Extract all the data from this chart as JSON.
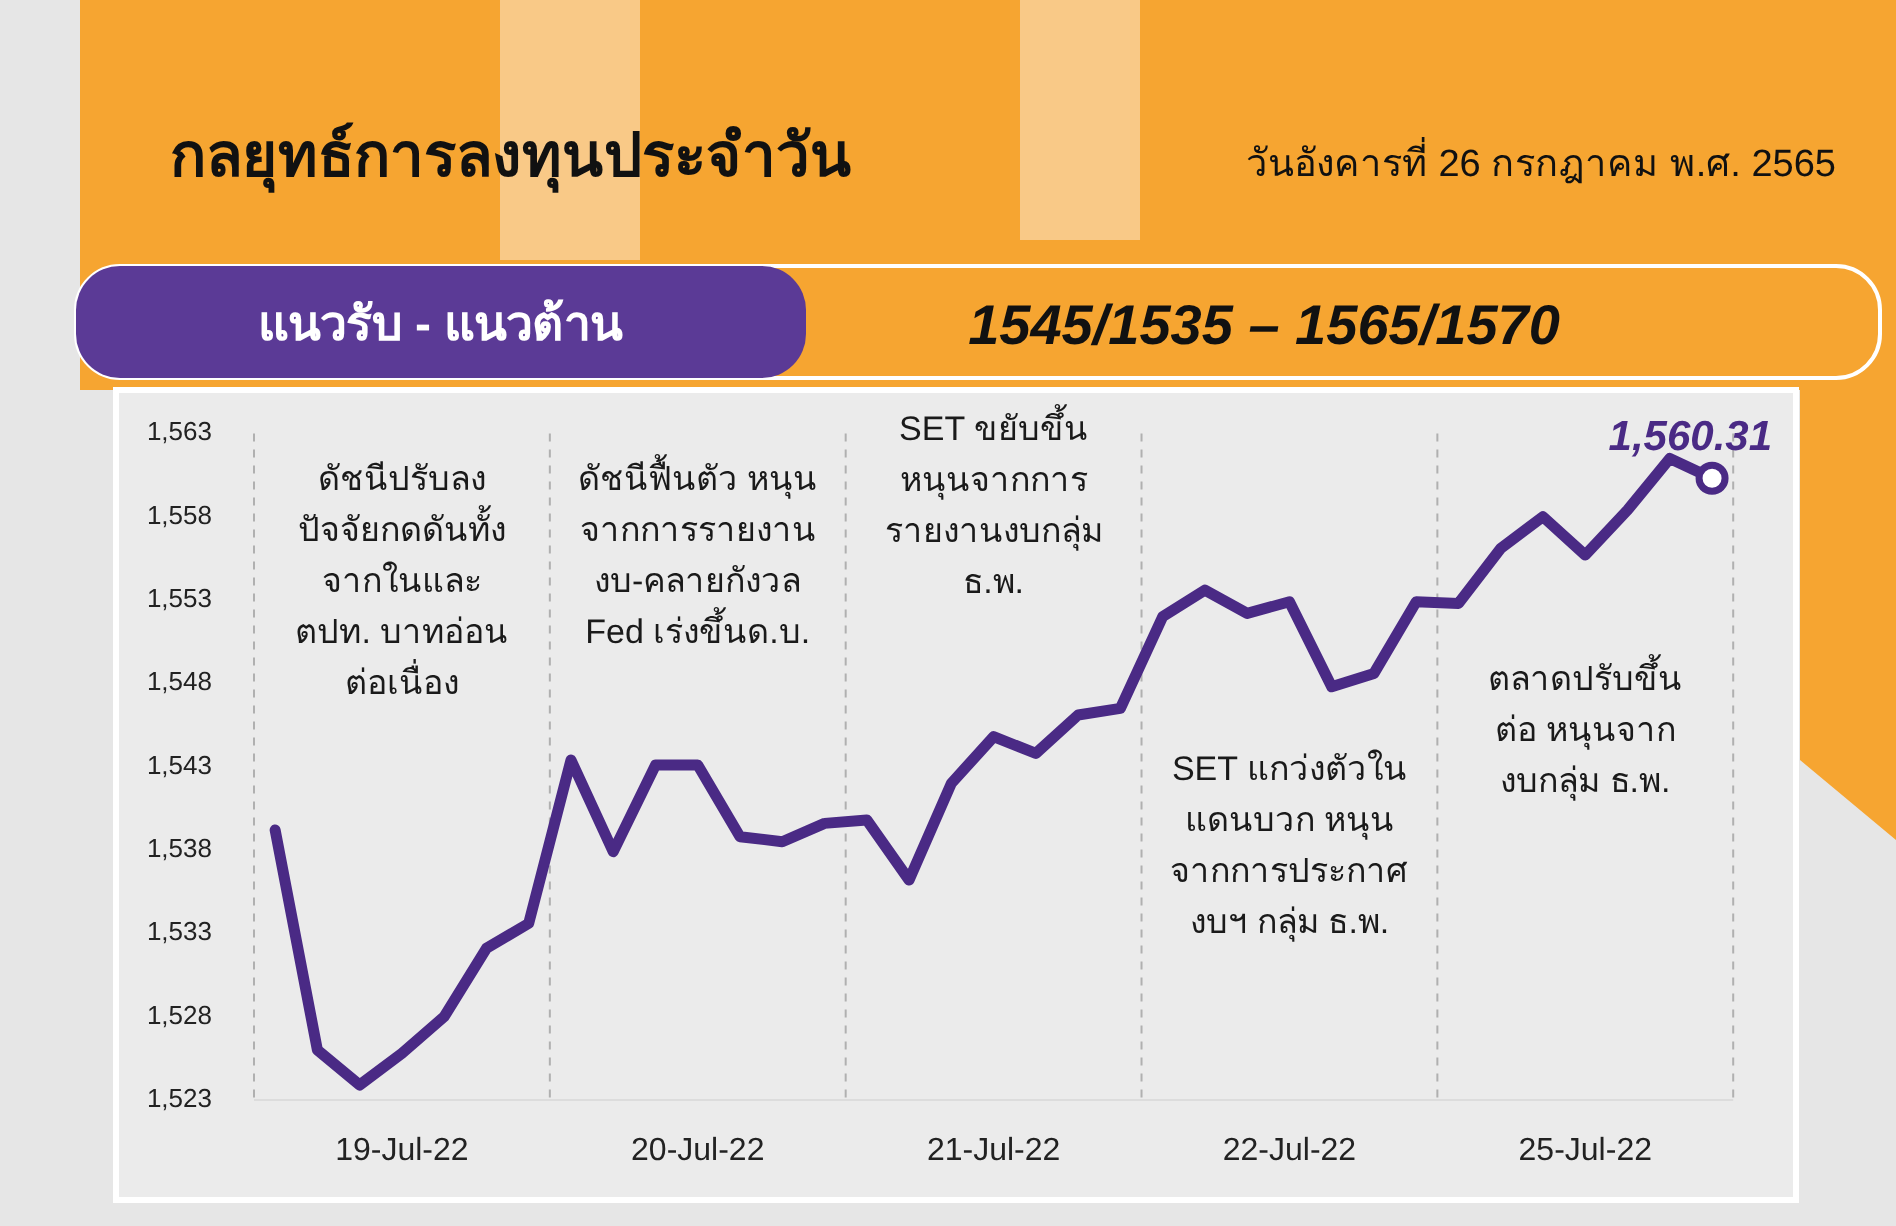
{
  "chart_data": {
    "type": "line",
    "title": "กลยุทธ์การลงทุนประจำวัน",
    "subtitle": "วันอังคารที่ 26 กรกฎาคม พ.ศ. 2565",
    "annotations": [
      "แนวรับ - แนวต้าน",
      "1545/1535  –  1565/1570",
      "ดัชนีปรับลง\nปัจจัยกดดันทั้ง\nจากในและ\nตปท. บาทอ่อน\nต่อเนื่อง",
      "ดัชนีฟื้นตัว หนุน\nจากการรายงาน\nงบ-คลายกังวล\nFed เร่งขึ้นด.บ.",
      "SET ขยับขึ้น\nหนุนจากการ\nรายงานงบกลุ่ม\nธ.พ.",
      "SET แกว่งตัวใน\nแดนบวก หนุน\nจากการประกาศ\nงบฯ กลุ่ม ธ.พ.",
      "ตลาดปรับขึ้น\nต่อ หนุนจาก\nงบกลุ่ม ธ.พ.",
      {
        "text": "1,560.31",
        "y": 1560.31
      }
    ],
    "categories": [
      null,
      null,
      null,
      "19-Jul-22",
      null,
      null,
      null,
      null,
      null,
      null,
      "20-Jul-22",
      null,
      null,
      null,
      null,
      null,
      null,
      "21-Jul-22",
      null,
      null,
      null,
      null,
      null,
      null,
      "22-Jul-22",
      null,
      null,
      null,
      null,
      null,
      null,
      "25-Jul-22",
      null,
      null,
      null
    ],
    "series": [
      {
        "color": "#4a2a85",
        "values": [
          1539.2,
          1526.0,
          1523.9,
          1525.8,
          1528.0,
          1532.1,
          1533.6,
          1543.4,
          1537.9,
          1543.1,
          1543.1,
          1538.8,
          1538.5,
          1539.6,
          1539.8,
          1536.2,
          1542.0,
          1544.8,
          1543.8,
          1546.1,
          1546.5,
          1552.0,
          1553.6,
          1552.2,
          1552.9,
          1547.8,
          1548.6,
          1552.9,
          1552.8,
          1556.1,
          1558.0,
          1555.7,
          1558.4,
          1561.5,
          1560.31
        ]
      }
    ],
    "grid": "x",
    "ylim": [
      1523,
      1563
    ],
    "yticks": [
      {
        "value": 1523,
        "label": "1,523"
      },
      {
        "value": 1528,
        "label": "1,528"
      },
      {
        "value": 1533,
        "label": "1,533"
      },
      {
        "value": 1538,
        "label": "1,538"
      },
      {
        "value": 1543,
        "label": "1,543"
      },
      {
        "value": 1548,
        "label": "1,548"
      },
      {
        "value": 1553,
        "label": "1,553"
      },
      {
        "value": 1558,
        "label": "1,558"
      },
      {
        "value": 1563,
        "label": "1,563"
      }
    ]
  }
}
